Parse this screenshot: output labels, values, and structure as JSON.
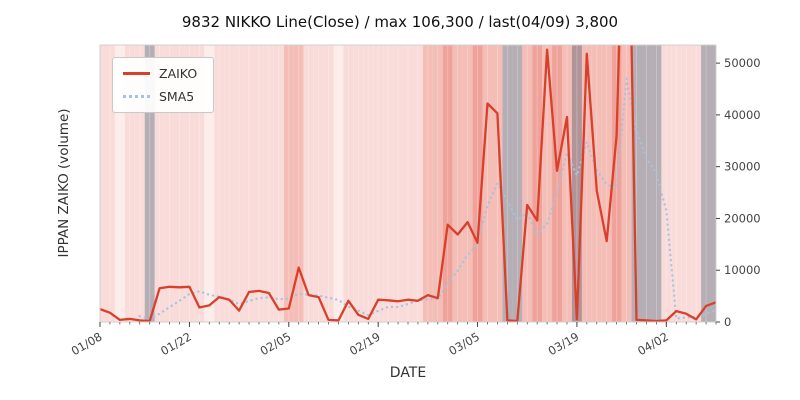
{
  "chart_data": {
    "type": "line",
    "title": "9832 NIKKO Line(Close) / max 106,300 / last(04/09) 3,800",
    "xlabel": "DATE",
    "ylabel": "IPPAN ZAIKO (volume)",
    "ylim": [
      0,
      53500
    ],
    "yticks": [
      0,
      10000,
      20000,
      30000,
      40000,
      50000
    ],
    "ytick_labels": [
      "0",
      "10000",
      "20000",
      "30000",
      "40000",
      "50000"
    ],
    "xtick_labels": [
      "01/08",
      "01/22",
      "02/05",
      "02/19",
      "03/05",
      "03/19",
      "04/02"
    ],
    "xtick_indices": [
      0,
      9,
      19,
      28,
      38,
      48,
      57
    ],
    "grid": false,
    "legend_position": "upper-left",
    "max_value": 106300,
    "last": {
      "date": "04/09",
      "value": 3800
    },
    "x_dates": [
      "01/08",
      "01/09",
      "01/10",
      "01/11",
      "01/15",
      "01/16",
      "01/17",
      "01/18",
      "01/21",
      "01/22",
      "01/23",
      "01/24",
      "01/25",
      "01/28",
      "01/29",
      "01/30",
      "01/31",
      "02/01",
      "02/04",
      "02/05",
      "02/06",
      "02/07",
      "02/08",
      "02/12",
      "02/13",
      "02/14",
      "02/15",
      "02/18",
      "02/19",
      "02/20",
      "02/21",
      "02/22",
      "02/25",
      "02/26",
      "02/27",
      "02/28",
      "03/01",
      "03/04",
      "03/05",
      "03/06",
      "03/07",
      "03/08",
      "03/11",
      "03/12",
      "03/13",
      "03/14",
      "03/15",
      "03/18",
      "03/19",
      "03/20",
      "03/22",
      "03/25",
      "03/26",
      "03/27",
      "03/28",
      "03/29",
      "04/01",
      "04/02",
      "04/03",
      "04/04",
      "04/05",
      "04/08",
      "04/09"
    ],
    "series": [
      {
        "name": "ZAIKO",
        "style": "solid",
        "color": "#d8402c",
        "values": [
          2500,
          1800,
          400,
          600,
          300,
          200,
          6500,
          6800,
          6700,
          6800,
          2800,
          3200,
          4800,
          4300,
          2200,
          5800,
          6000,
          5600,
          2400,
          2600,
          10500,
          5200,
          4800,
          400,
          300,
          4100,
          1400,
          600,
          4300,
          4200,
          4000,
          4300,
          4100,
          5200,
          4600,
          18800,
          16900,
          19300,
          15300,
          42200,
          40300,
          300,
          200,
          22600,
          19600,
          52600,
          29200,
          39600,
          500,
          51800,
          25300,
          15600,
          36000,
          106300,
          400,
          300,
          200,
          300,
          2100,
          1600,
          500,
          3100,
          3800
        ]
      },
      {
        "name": "SMA5",
        "style": "dotted",
        "color": "#a5c3e0",
        "values": [
          null,
          null,
          null,
          null,
          1120,
          660,
          1600,
          2880,
          4100,
          5400,
          5920,
          5260,
          4860,
          4380,
          3460,
          4060,
          4620,
          4780,
          4400,
          4480,
          5420,
          5260,
          5100,
          4700,
          4240,
          2960,
          2200,
          1360,
          2140,
          2920,
          2900,
          3480,
          4180,
          4360,
          4440,
          7400,
          9920,
          12960,
          14980,
          22500,
          26800,
          23480,
          19660,
          21120,
          16600,
          19060,
          24840,
          32720,
          28300,
          34740,
          29280,
          26560,
          25840,
          47000,
          36720,
          31720,
          28640,
          21500,
          660,
          900,
          940,
          1520,
          2220
        ]
      }
    ],
    "background": {
      "heat": [
        1,
        1,
        0,
        1,
        1,
        1,
        1,
        1,
        1,
        1,
        1,
        0,
        1,
        1,
        1,
        1,
        1,
        1,
        1,
        2,
        2,
        1,
        1,
        1,
        0,
        1,
        1,
        1,
        1,
        1,
        1,
        1,
        1,
        2,
        2,
        3,
        2,
        2,
        3,
        2,
        2,
        1,
        1,
        2,
        3,
        2,
        3,
        2,
        3,
        2,
        2,
        2,
        3,
        2,
        1,
        1,
        1,
        1,
        1,
        1,
        1,
        1,
        1
      ],
      "heat_colors": [
        "#fcecea",
        "#f9dcd9",
        "#f4bdb6",
        "#efa29a"
      ],
      "gray_band_indices": [
        5,
        41,
        42,
        48,
        54,
        55,
        56,
        61,
        62
      ],
      "gray_color": "#7e8897",
      "gray_alpha": 0.55,
      "day_gridline_color": "#ffffff"
    },
    "axis": {
      "tick_color": "#444444",
      "frame_color": "#d0d0d0"
    }
  }
}
